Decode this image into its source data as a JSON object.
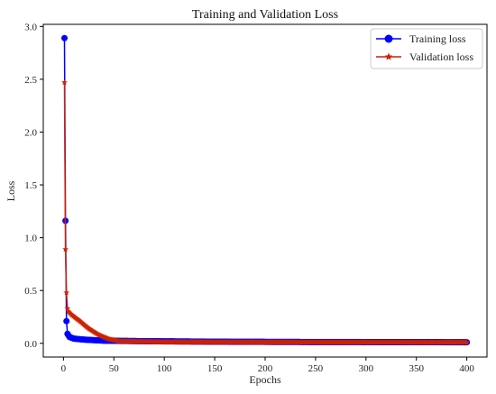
{
  "chart_data": {
    "type": "line",
    "title": "Training and Validation Loss",
    "xlabel": "Epochs",
    "ylabel": "Loss",
    "xlim": [
      -20,
      420
    ],
    "ylim": [
      -0.13,
      3.02
    ],
    "xticks": [
      0,
      50,
      100,
      150,
      200,
      250,
      300,
      350,
      400
    ],
    "yticks": [
      0.0,
      0.5,
      1.0,
      1.5,
      2.0,
      2.5,
      3.0
    ],
    "ytick_labels": [
      "0.0",
      "0.5",
      "1.0",
      "1.5",
      "2.0",
      "2.5",
      "3.0"
    ],
    "grid": false,
    "legend_position": "top-right",
    "epochs": 400,
    "series": [
      {
        "name": "Training loss",
        "color": "#0000ff",
        "marker": "circle",
        "keypoints": [
          [
            1,
            2.89
          ],
          [
            2,
            1.16
          ],
          [
            3,
            0.21
          ],
          [
            4,
            0.09
          ],
          [
            6,
            0.06
          ],
          [
            10,
            0.045
          ],
          [
            20,
            0.035
          ],
          [
            40,
            0.025
          ],
          [
            80,
            0.02
          ],
          [
            150,
            0.015
          ],
          [
            250,
            0.012
          ],
          [
            400,
            0.01
          ]
        ]
      },
      {
        "name": "Validation loss",
        "color": "#cc2200",
        "marker": "star",
        "keypoints": [
          [
            1,
            2.47
          ],
          [
            2,
            0.89
          ],
          [
            3,
            0.48
          ],
          [
            4,
            0.33
          ],
          [
            5,
            0.3
          ],
          [
            8,
            0.27
          ],
          [
            15,
            0.22
          ],
          [
            25,
            0.14
          ],
          [
            35,
            0.08
          ],
          [
            45,
            0.04
          ],
          [
            55,
            0.02
          ],
          [
            100,
            0.012
          ],
          [
            250,
            0.01
          ],
          [
            400,
            0.008
          ]
        ]
      }
    ]
  }
}
